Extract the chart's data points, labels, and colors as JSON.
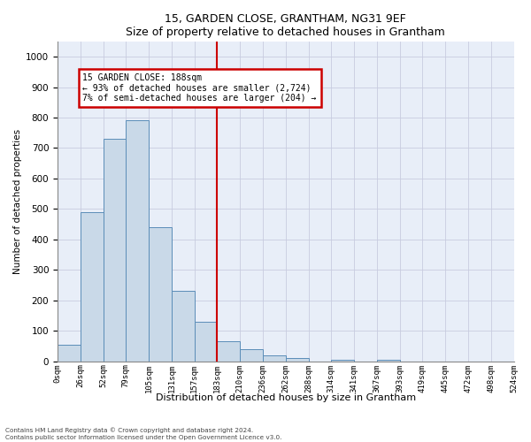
{
  "title1": "15, GARDEN CLOSE, GRANTHAM, NG31 9EF",
  "title2": "Size of property relative to detached houses in Grantham",
  "xlabel": "Distribution of detached houses by size in Grantham",
  "ylabel": "Number of detached properties",
  "footnote1": "Contains HM Land Registry data © Crown copyright and database right 2024.",
  "footnote2": "Contains public sector information licensed under the Open Government Licence v3.0.",
  "bar_values": [
    55,
    490,
    730,
    790,
    440,
    230,
    130,
    65,
    40,
    20,
    10,
    0,
    5,
    0,
    5,
    0,
    0,
    0,
    0,
    0
  ],
  "bin_labels": [
    "0sqm",
    "26sqm",
    "52sqm",
    "79sqm",
    "105sqm",
    "131sqm",
    "157sqm",
    "183sqm",
    "210sqm",
    "236sqm",
    "262sqm",
    "288sqm",
    "314sqm",
    "341sqm",
    "367sqm",
    "393sqm",
    "419sqm",
    "445sqm",
    "472sqm",
    "498sqm",
    "524sqm"
  ],
  "bar_color": "#c9d9e8",
  "bar_edge_color": "#5b8db8",
  "annotation_text1": "15 GARDEN CLOSE: 188sqm",
  "annotation_text2": "← 93% of detached houses are smaller (2,724)",
  "annotation_text3": "7% of semi-detached houses are larger (204) →",
  "annotation_box_color": "#ffffff",
  "annotation_box_edge": "#cc0000",
  "vline_color": "#cc0000",
  "ylim": [
    0,
    1050
  ],
  "yticks": [
    0,
    100,
    200,
    300,
    400,
    500,
    600,
    700,
    800,
    900,
    1000
  ],
  "grid_color": "#ccccdd",
  "background_color": "#e8eef8"
}
